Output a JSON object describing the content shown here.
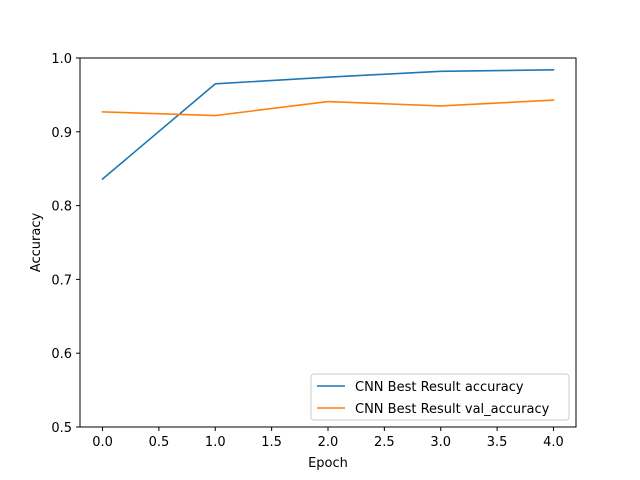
{
  "chart_data": {
    "type": "line",
    "title": "",
    "xlabel": "Epoch",
    "ylabel": "Accuracy",
    "xlim": [
      -0.2,
      4.2
    ],
    "ylim": [
      0.5,
      1.0
    ],
    "xticks": [
      0.0,
      0.5,
      1.0,
      1.5,
      2.0,
      2.5,
      3.0,
      3.5,
      4.0
    ],
    "xtick_labels": [
      "0.0",
      "0.5",
      "1.0",
      "1.5",
      "2.0",
      "2.5",
      "3.0",
      "3.5",
      "4.0"
    ],
    "yticks": [
      0.5,
      0.6,
      0.7,
      0.8,
      0.9,
      1.0
    ],
    "ytick_labels": [
      "0.5",
      "0.6",
      "0.7",
      "0.8",
      "0.9",
      "1.0"
    ],
    "grid": false,
    "legend_position": "lower-right",
    "x": [
      0,
      1,
      2,
      3,
      4
    ],
    "series": [
      {
        "name": "CNN Best Result accuracy",
        "color": "#1f77b4",
        "values": [
          0.836,
          0.965,
          0.974,
          0.982,
          0.984
        ]
      },
      {
        "name": "CNN Best Result val_accuracy",
        "color": "#ff7f0e",
        "values": [
          0.927,
          0.922,
          0.941,
          0.935,
          0.943
        ]
      }
    ]
  }
}
